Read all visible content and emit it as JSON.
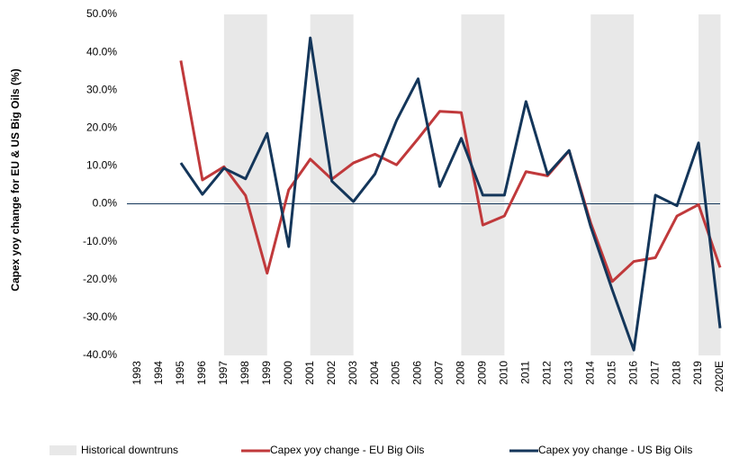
{
  "chart_data": {
    "type": "line",
    "y_label": "Capex yoy change for EU & US Big Oils (%)",
    "categories": [
      "1993",
      "1994",
      "1995",
      "1996",
      "1997",
      "1998",
      "1999",
      "2000",
      "2001",
      "2002",
      "2003",
      "2004",
      "2005",
      "2006",
      "2007",
      "2008",
      "2009",
      "2010",
      "2011",
      "2012",
      "2013",
      "2014",
      "2015",
      "2016",
      "2017",
      "2018",
      "2019",
      "2020E"
    ],
    "shading": {
      "name": "Historical downtruns",
      "color": "#e8e8e8",
      "periods": [
        {
          "from": "1997",
          "to": "1998"
        },
        {
          "from": "2001",
          "to": "2002"
        },
        {
          "from": "2008",
          "to": "2009"
        },
        {
          "from": "2014",
          "to": "2015"
        },
        {
          "from": "2019",
          "to": "2020E"
        }
      ]
    },
    "series": [
      {
        "name": "Capex yoy change - EU Big Oils",
        "color": "#c0393b",
        "values": [
          null,
          null,
          37.8,
          6.3,
          9.8,
          2.2,
          -18.3,
          3.7,
          11.8,
          6.5,
          10.8,
          13.1,
          10.3,
          17.2,
          24.4,
          24.1,
          -5.6,
          -3.2,
          8.5,
          7.4,
          14.0,
          -5.0,
          -20.5,
          -15.2,
          -14.2,
          -3.2,
          -0.2,
          -16.8
        ]
      },
      {
        "name": "Capex yoy change - US Big Oils",
        "color": "#14365a",
        "values": [
          null,
          null,
          10.8,
          2.5,
          9.4,
          6.6,
          18.6,
          -11.3,
          43.8,
          6.0,
          0.6,
          7.9,
          22.0,
          33.0,
          4.6,
          17.3,
          2.3,
          2.3,
          27.0,
          7.8,
          14.1,
          -6.0,
          -22.7,
          -38.6,
          2.3,
          -0.5,
          16.1,
          -32.8
        ]
      }
    ],
    "ylim": [
      -40,
      50
    ],
    "yticks": [
      {
        "value": -40,
        "label": "-40.0%"
      },
      {
        "value": -30,
        "label": "-30.0%"
      },
      {
        "value": -20,
        "label": "-20.0%"
      },
      {
        "value": -10,
        "label": "-10.0%"
      },
      {
        "value": 0,
        "label": "0.0%"
      },
      {
        "value": 10,
        "label": "10.0%"
      },
      {
        "value": 20,
        "label": "20.0%"
      },
      {
        "value": 30,
        "label": "30.0%"
      },
      {
        "value": 40,
        "label": "40.0%"
      },
      {
        "value": 50,
        "label": "50.0%"
      }
    ],
    "grid": false
  }
}
